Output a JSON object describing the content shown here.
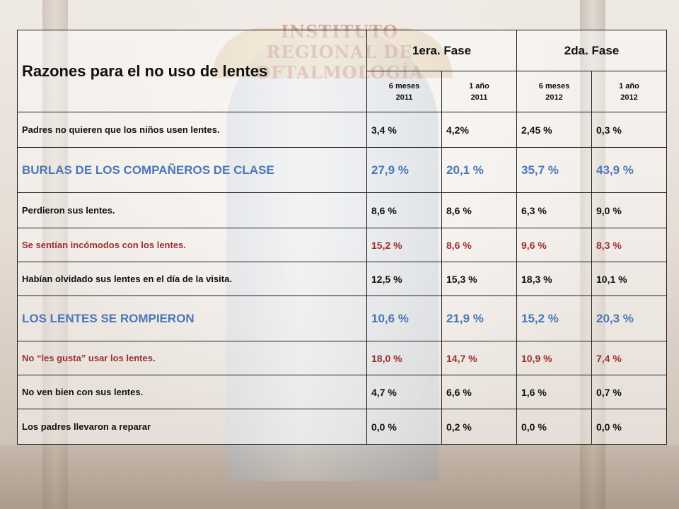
{
  "background": {
    "sign_text": "INSTITUTO REGIONAL DE OFTALMOLOGÍA"
  },
  "table": {
    "title": "Razones para el no uso de lentes",
    "phases": [
      "1era. Fase",
      "2da. Fase"
    ],
    "subheaders": [
      {
        "line1": "6 meses",
        "line2": "2011"
      },
      {
        "line1": "1 año",
        "line2": "2011"
      },
      {
        "line1": "6 meses",
        "line2": "2012"
      },
      {
        "line1": "1 año",
        "line2": "2012"
      }
    ],
    "rows": [
      {
        "reason": "Padres no quieren que los niños usen lentes.",
        "values": [
          "3,4 %",
          "4,2%",
          "2,45 %",
          "0,3 %"
        ],
        "style": "normal"
      },
      {
        "reason": "BURLAS DE LOS COMPAÑEROS DE CLASE",
        "values": [
          "27,9 %",
          "20,1 %",
          "35,7 %",
          "43,9 %"
        ],
        "style": "blue"
      },
      {
        "reason": "Perdieron sus lentes.",
        "values": [
          "8,6 %",
          "8,6 %",
          "6,3 %",
          "9,0 %"
        ],
        "style": "normal"
      },
      {
        "reason": "Se sentían incómodos con los lentes.",
        "values": [
          "15,2 %",
          "8,6 %",
          "9,6 %",
          "8,3 %"
        ],
        "style": "red"
      },
      {
        "reason": "Habían olvidado sus lentes en el día de la visita.",
        "values": [
          "12,5 %",
          "15,3 %",
          "18,3 %",
          "10,1 %"
        ],
        "style": "normal"
      },
      {
        "reason": "LOS LENTES SE ROMPIERON",
        "values": [
          "10,6 %",
          "21,9 %",
          "15,2 %",
          "20,3 %"
        ],
        "style": "blue"
      },
      {
        "reason": "No “les gusta” usar los lentes.",
        "values": [
          "18,0 %",
          "14,7 %",
          "10,9 %",
          "7,4 %"
        ],
        "style": "red"
      },
      {
        "reason": "No ven bien con sus lentes.",
        "values": [
          "4,7 %",
          "6,6 %",
          "1,6 %",
          "0,7 %"
        ],
        "style": "normal"
      },
      {
        "reason": "Los padres llevaron a reparar",
        "values": [
          "0,0 %",
          "0,2 %",
          "0,0 %",
          "0,0 %"
        ],
        "style": "normal"
      }
    ]
  },
  "colors": {
    "blue_highlight": "#4a78b8",
    "red_highlight": "#9c2f2f",
    "text": "#111111"
  }
}
